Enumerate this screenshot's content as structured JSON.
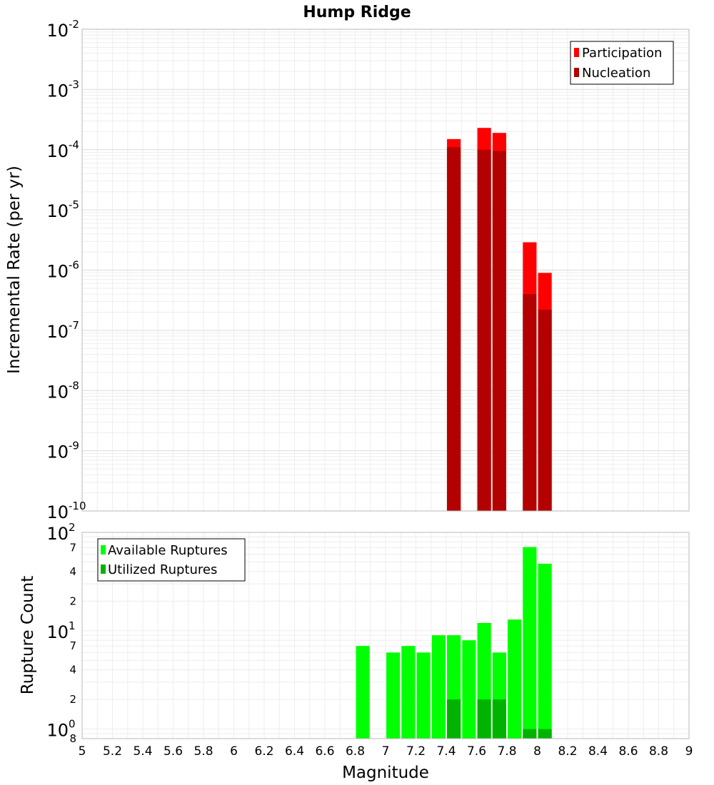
{
  "chart_data": [
    {
      "type": "bar",
      "title": "Hump Ridge",
      "xlabel": "",
      "ylabel": "Incremental Rate (per yr)",
      "y_scale": "log",
      "ylim": [
        1e-10,
        0.01
      ],
      "xlim": [
        5,
        9
      ],
      "bar_width": 0.09,
      "grid": true,
      "legend_position": "top-right",
      "y_tick_labels": [
        {
          "value": 0.01,
          "base": "10",
          "exp": "-2"
        },
        {
          "value": 0.001,
          "base": "10",
          "exp": "-3"
        },
        {
          "value": 0.0001,
          "base": "10",
          "exp": "-4"
        },
        {
          "value": 1e-05,
          "base": "10",
          "exp": "-5"
        },
        {
          "value": 1e-06,
          "base": "10",
          "exp": "-6"
        },
        {
          "value": 1e-07,
          "base": "10",
          "exp": "-7"
        },
        {
          "value": 1e-08,
          "base": "10",
          "exp": "-8"
        },
        {
          "value": 1e-09,
          "base": "10",
          "exp": "-9"
        },
        {
          "value": 1e-10,
          "base": "10",
          "exp": "-10"
        }
      ],
      "series": [
        {
          "name": "Participation",
          "color": "#ff0000",
          "x": [
            7.45,
            7.65,
            7.75,
            7.95,
            8.05
          ],
          "values": [
            0.00015,
            0.00023,
            0.00019,
            2.9e-06,
            9e-07
          ]
        },
        {
          "name": "Nucleation",
          "color": "#b30000",
          "x": [
            7.45,
            7.65,
            7.75,
            7.95,
            8.05
          ],
          "values": [
            0.00011,
            0.0001,
            9.5e-05,
            4e-07,
            2.2e-07
          ]
        }
      ]
    },
    {
      "type": "bar",
      "xlabel": "Magnitude",
      "ylabel": "Rupture Count",
      "y_scale": "log",
      "ylim": [
        0.8,
        100
      ],
      "xlim": [
        5,
        9
      ],
      "bar_width": 0.09,
      "grid": true,
      "legend_position": "top-left",
      "x_ticks": [
        "5",
        "5.2",
        "5.4",
        "5.6",
        "5.8",
        "6",
        "6.2",
        "6.4",
        "6.6",
        "6.8",
        "7",
        "7.2",
        "7.4",
        "7.6",
        "7.8",
        "8",
        "8.2",
        "8.4",
        "8.6",
        "8.8",
        "9"
      ],
      "y_tick_labels": [
        {
          "value": 100,
          "base": "10",
          "exp": "2"
        },
        {
          "value": 10,
          "base": "10",
          "exp": "1"
        },
        {
          "value": 1,
          "base": "10",
          "exp": "0"
        }
      ],
      "y_minor_labels": [
        {
          "value": 70,
          "label": "7"
        },
        {
          "value": 40,
          "label": "4"
        },
        {
          "value": 20,
          "label": "2"
        },
        {
          "value": 7,
          "label": "7"
        },
        {
          "value": 4,
          "label": "4"
        },
        {
          "value": 2,
          "label": "2"
        },
        {
          "value": 0.8,
          "label": "8"
        }
      ],
      "series": [
        {
          "name": "Available Ruptures",
          "color": "#00ff00",
          "x": [
            6.85,
            7.05,
            7.15,
            7.25,
            7.35,
            7.45,
            7.55,
            7.65,
            7.75,
            7.85,
            7.95,
            8.05
          ],
          "values": [
            7,
            6,
            7,
            6,
            9,
            9,
            8,
            12,
            6,
            13,
            71,
            48
          ]
        },
        {
          "name": "Utilized Ruptures",
          "color": "#00b300",
          "x": [
            7.45,
            7.65,
            7.75,
            7.95,
            8.05
          ],
          "values": [
            2,
            2,
            2,
            1,
            1
          ]
        }
      ]
    }
  ]
}
